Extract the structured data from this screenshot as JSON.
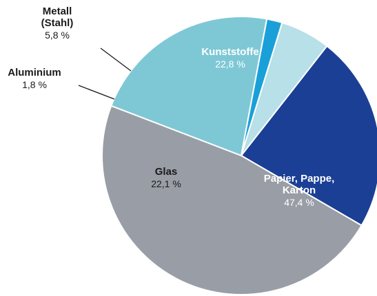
{
  "chart_data": {
    "type": "pie",
    "title": "",
    "unit": "%",
    "slices": [
      {
        "name_lines": [
          "Kunststoffe"
        ],
        "value": 22.8,
        "value_label": "22,8 %",
        "color": "#1b3f95",
        "text_color": "#ffffff"
      },
      {
        "name_lines": [
          "Papier, Pappe,",
          "Karton"
        ],
        "value": 47.4,
        "value_label": "47,4 %",
        "color": "#999ea6",
        "text_color": "#ffffff"
      },
      {
        "name_lines": [
          "Glas"
        ],
        "value": 22.1,
        "value_label": "22,1 %",
        "color": "#7ec8d6",
        "text_color": "#1a1a1a"
      },
      {
        "name_lines": [
          "Aluminium"
        ],
        "value": 1.8,
        "value_label": "1,8 %",
        "color": "#1aa0d8",
        "text_color": "#1a1a1a"
      },
      {
        "name_lines": [
          "Metall",
          "(Stahl)"
        ],
        "value": 5.8,
        "value_label": "5,8 %",
        "color": "#b7e0e8",
        "text_color": "#1a1a1a"
      }
    ]
  }
}
